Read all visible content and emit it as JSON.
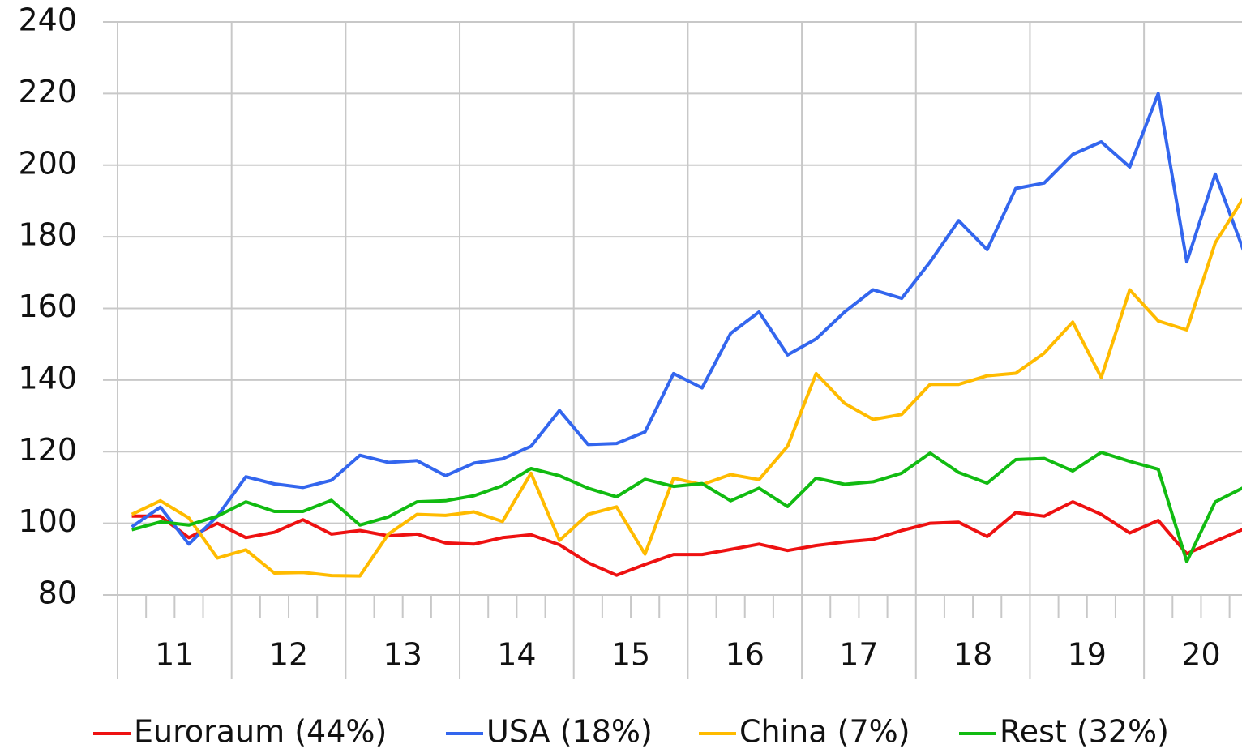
{
  "chart_data": {
    "type": "line",
    "categories": [
      "11",
      null,
      null,
      null,
      "12",
      null,
      null,
      null,
      "13",
      null,
      null,
      null,
      "14",
      null,
      null,
      null,
      "15",
      null,
      null,
      null,
      "16",
      null,
      null,
      null,
      "17",
      null,
      null,
      null,
      "18",
      null,
      null,
      null,
      "19",
      null,
      null,
      null,
      "20",
      null,
      null,
      null
    ],
    "series": [
      {
        "name": "Euroraum (44%)",
        "color": "#ee1111",
        "values": [
          102,
          102,
          96,
          100,
          96,
          97.5,
          101,
          97,
          98,
          96.5,
          97,
          94.5,
          94.2,
          96,
          96.8,
          94,
          89,
          85.5,
          88.5,
          91.3,
          91.3,
          92.7,
          94.2,
          92.4,
          93.8,
          94.8,
          95.5,
          98,
          100,
          100.3,
          96.3,
          103,
          102,
          106,
          102.5,
          97.3,
          100.8,
          91.5,
          95,
          98.4
        ]
      },
      {
        "name": "USA (18%)",
        "color": "#3366ee",
        "values": [
          99,
          104.5,
          94.2,
          102,
          113,
          111,
          110,
          112,
          119,
          117,
          117.5,
          113.3,
          116.8,
          118,
          121.5,
          131.5,
          122,
          122.3,
          125.5,
          141.8,
          137.8,
          153,
          159,
          147,
          151.5,
          159,
          165.2,
          162.8,
          173,
          184.5,
          176.4,
          193.5,
          195,
          203,
          206.5,
          199.5,
          220,
          173,
          197.5,
          176
        ]
      },
      {
        "name": "China (7%)",
        "color": "#ffbb00",
        "values": [
          102.5,
          106.3,
          101.5,
          90.3,
          92.6,
          86.1,
          86.3,
          85.4,
          85.3,
          97,
          102.5,
          102.2,
          103.2,
          100.5,
          114,
          95.2,
          102.5,
          104.6,
          91.4,
          112.6,
          110.8,
          113.6,
          112.2,
          121.5,
          141.8,
          133.5,
          129,
          130.4,
          138.8,
          138.8,
          141.2,
          141.9,
          147.5,
          156.2,
          140.7,
          165.2,
          156.5,
          154,
          178.3,
          191
        ]
      },
      {
        "name": "Rest (32%)",
        "color": "#11bb11",
        "values": [
          98.2,
          100.4,
          99.5,
          102,
          106,
          103.3,
          103.3,
          106.4,
          99.5,
          101.8,
          106,
          106.3,
          107.7,
          110.5,
          115.3,
          113.3,
          109.8,
          107.4,
          112.3,
          110.3,
          111.1,
          106.3,
          109.8,
          104.7,
          112.6,
          110.9,
          111.6,
          114,
          119.6,
          114.2,
          111.2,
          117.8,
          118.1,
          114.6,
          119.8,
          117.3,
          115.1,
          89.3,
          106,
          110
        ]
      }
    ],
    "ylim": [
      80,
      240
    ],
    "yticks": [
      80,
      100,
      120,
      140,
      160,
      180,
      200,
      220,
      240
    ],
    "grid": true,
    "legend": "bottom"
  }
}
